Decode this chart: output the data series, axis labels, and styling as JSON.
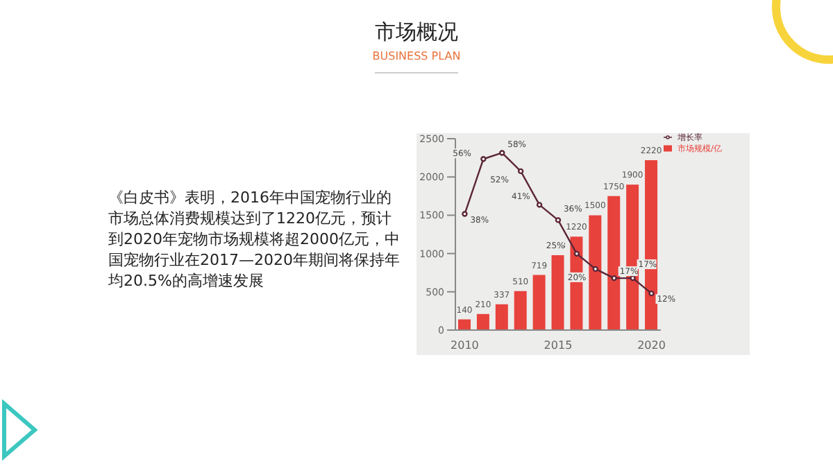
{
  "chart_data": {
    "type": "bar",
    "title": "市场概况",
    "subtitle": "BUSINESS PLAN",
    "annotations": [
      "《白皮书》表明，2016年中国宠物行业的市场总体消费规模达到了1220亿元，预计到2020年宠物市场规模将超2000亿元，中国宠物行业在2017—2020年期间将保持年均20.5%的高增速发展"
    ],
    "categories": [
      "2010",
      null,
      null,
      null,
      null,
      "2015",
      null,
      null,
      null,
      null,
      "2020"
    ],
    "series": [
      {
        "name": "市场规模/亿",
        "color": "#e8423d",
        "values": [
          140,
          210,
          337,
          510,
          719,
          978,
          1220,
          1500,
          1750,
          1900,
          2220
        ]
      },
      {
        "name": "增长率",
        "type": "line",
        "axis": "y2",
        "color": "#5b2638",
        "values": [
          38,
          56,
          58,
          52,
          41,
          36,
          25,
          20,
          17,
          17,
          12
        ],
        "value_labels": [
          "38%",
          "56%",
          "58%",
          "52%",
          "41%",
          "36%",
          "25%",
          "20%",
          "17%",
          "17%",
          "12%"
        ]
      }
    ],
    "ylim": [
      0,
      2500
    ],
    "yticks": [
      0,
      500,
      1000,
      1500,
      2000,
      2500
    ],
    "data_labels": true,
    "grid": false,
    "legend": "top right",
    "marker": "circle",
    "line_style": "solid"
  }
}
